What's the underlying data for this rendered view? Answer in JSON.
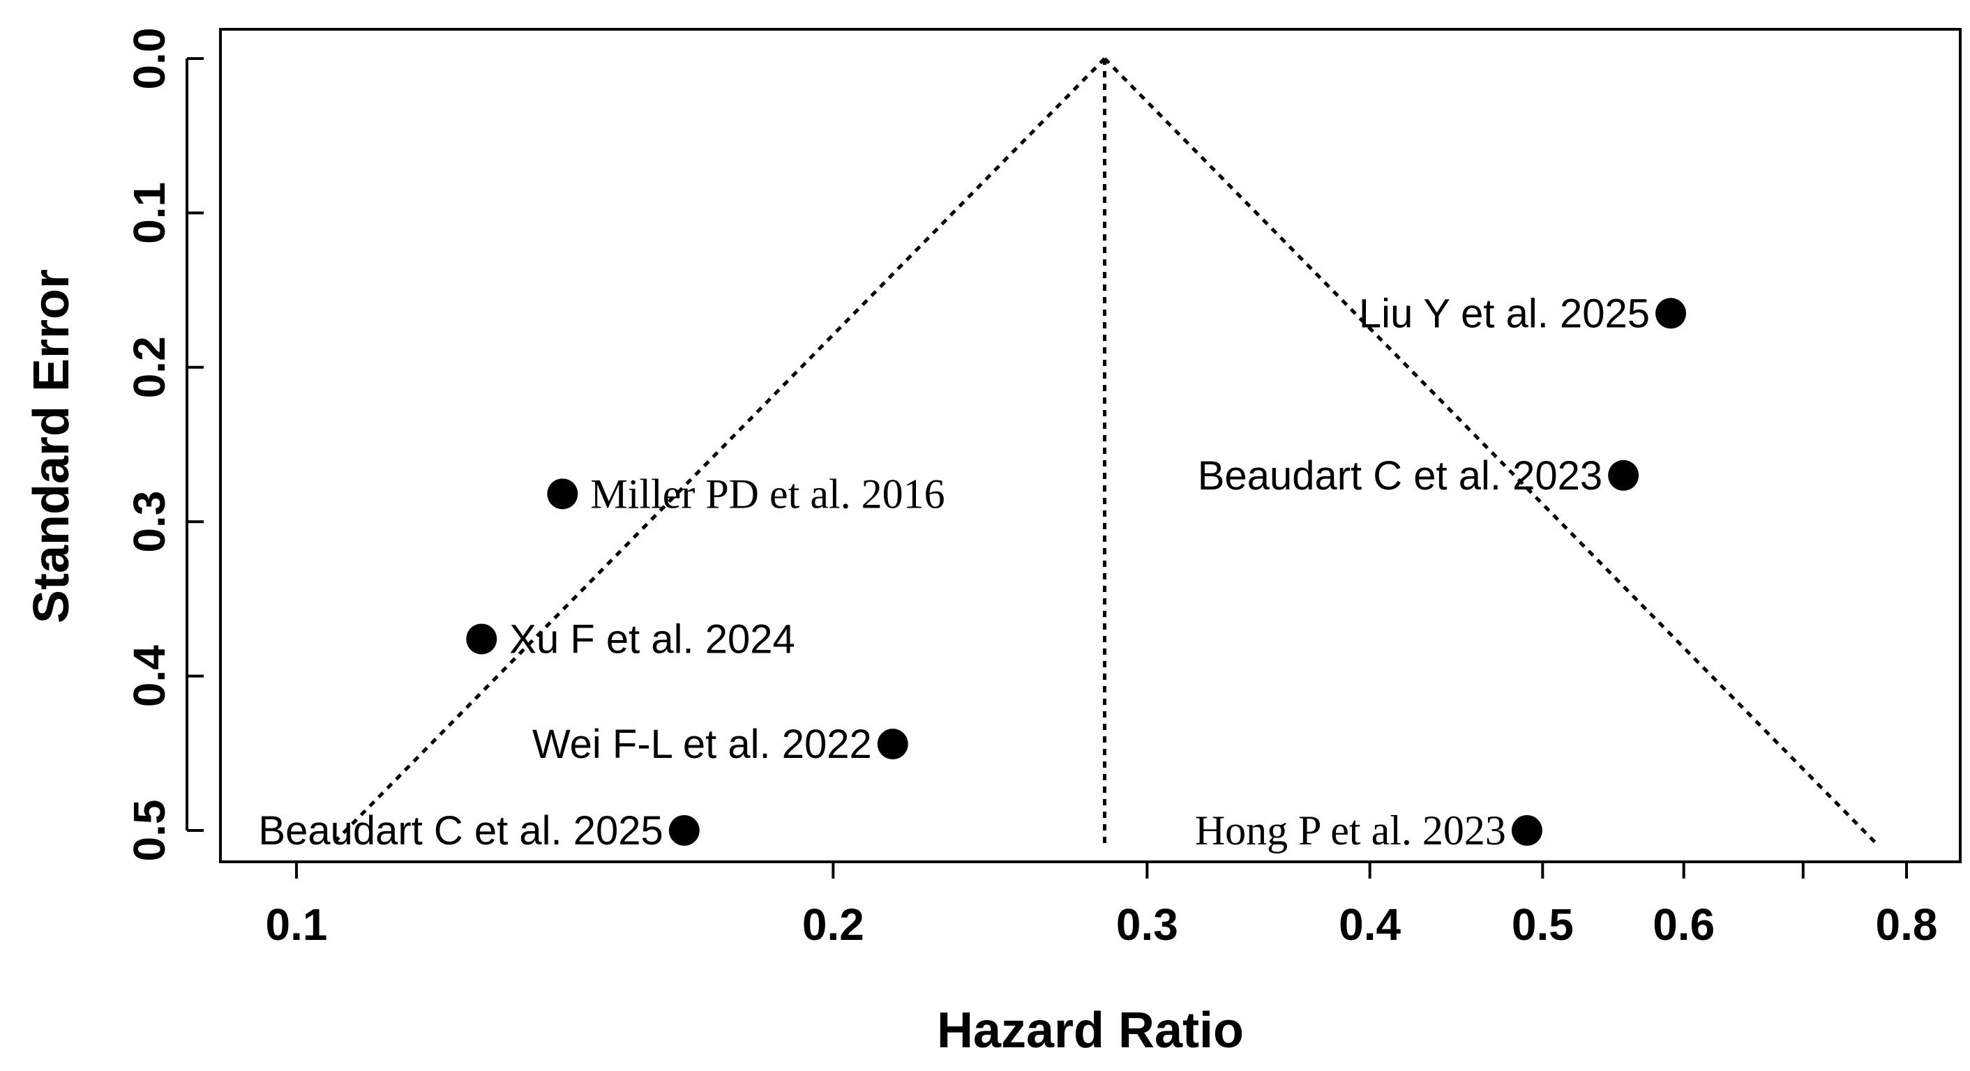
{
  "chart_data": {
    "type": "scatter",
    "subtype": "funnel-plot",
    "title": "",
    "xlabel": "Hazard Ratio",
    "ylabel": "Standard Error",
    "x_scale": "log",
    "xlim": [
      0.09,
      0.88
    ],
    "ylim": [
      0.53,
      -0.02
    ],
    "y_inverted": true,
    "x_ticks": [
      {
        "value": 0.1,
        "label": "0.1"
      },
      {
        "value": 0.2,
        "label": "0.2"
      },
      {
        "value": 0.3,
        "label": "0.3"
      },
      {
        "value": 0.4,
        "label": "0.4"
      },
      {
        "value": 0.5,
        "label": "0.5"
      },
      {
        "value": 0.6,
        "label": "0.6"
      },
      {
        "value": 0.7,
        "label": ""
      },
      {
        "value": 0.8,
        "label": "0.8"
      }
    ],
    "y_ticks": [
      {
        "value": 0.0,
        "label": "0.0"
      },
      {
        "value": 0.1,
        "label": "0.1"
      },
      {
        "value": 0.2,
        "label": "0.2"
      },
      {
        "value": 0.3,
        "label": "0.3"
      },
      {
        "value": 0.4,
        "label": "0.4"
      },
      {
        "value": 0.5,
        "label": "0.5"
      }
    ],
    "pooled_estimate": 0.284,
    "funnel_se_max": 0.51,
    "points": [
      {
        "label": "Liu Y et al. 2025",
        "hr": 0.59,
        "se": 0.165,
        "label_side": "left",
        "font": "sans"
      },
      {
        "label": "Beaudart C et al. 2023",
        "hr": 0.555,
        "se": 0.27,
        "label_side": "left",
        "font": "sans"
      },
      {
        "label": "Miller PD et al. 2016",
        "hr": 0.141,
        "se": 0.282,
        "label_side": "right",
        "font": "serif"
      },
      {
        "label": "Xu F et al. 2024",
        "hr": 0.127,
        "se": 0.376,
        "label_side": "right",
        "font": "sans"
      },
      {
        "label": "Wei F-L et al. 2022",
        "hr": 0.216,
        "se": 0.444,
        "label_side": "left",
        "font": "sans"
      },
      {
        "label": "Beaudart C et al. 2025",
        "hr": 0.165,
        "se": 0.5,
        "label_side": "left",
        "font": "sans"
      },
      {
        "label": "Hong P et al. 2023",
        "hr": 0.49,
        "se": 0.5,
        "label_side": "left",
        "font": "serif"
      }
    ],
    "grid": false,
    "legend": "none"
  }
}
